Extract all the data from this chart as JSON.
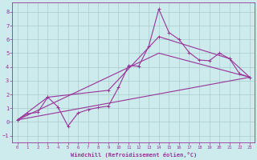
{
  "background_color": "#cdeaed",
  "line_color": "#993399",
  "grid_color": "#aacccc",
  "xlabel": "Windchill (Refroidissement éolien,°C)",
  "xlabel_color": "#993399",
  "tick_color": "#993399",
  "xlim": [
    -0.5,
    23.5
  ],
  "ylim": [
    -1.5,
    8.7
  ],
  "yticks": [
    -1,
    0,
    1,
    2,
    3,
    4,
    5,
    6,
    7,
    8
  ],
  "xticks": [
    0,
    1,
    2,
    3,
    4,
    5,
    6,
    7,
    8,
    9,
    10,
    11,
    12,
    13,
    14,
    15,
    16,
    17,
    18,
    19,
    20,
    21,
    22,
    23
  ],
  "line1_x": [
    0,
    1,
    2,
    3,
    4,
    5,
    6,
    7,
    8,
    9,
    10,
    11,
    12,
    13,
    14,
    15,
    16,
    17,
    18,
    19,
    20,
    21,
    22,
    23
  ],
  "line1_y": [
    0.15,
    0.6,
    0.7,
    1.8,
    1.1,
    -0.3,
    0.65,
    0.9,
    1.05,
    1.15,
    2.5,
    4.1,
    4.05,
    5.5,
    8.2,
    6.5,
    6.0,
    5.05,
    4.5,
    4.45,
    5.0,
    4.6,
    3.5,
    3.25
  ],
  "line2_x": [
    0,
    3,
    9,
    14,
    21,
    23
  ],
  "line2_y": [
    0.15,
    1.8,
    2.3,
    6.2,
    4.6,
    3.25
  ],
  "line3_x": [
    0,
    23
  ],
  "line3_y": [
    0.15,
    3.25
  ],
  "line4_x": [
    0,
    14,
    23
  ],
  "line4_y": [
    0.15,
    5.0,
    3.25
  ]
}
